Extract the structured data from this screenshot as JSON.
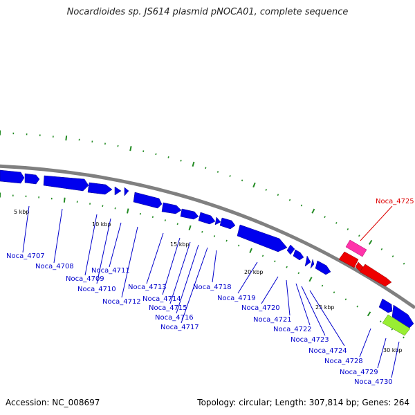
{
  "title": "Nocardioides sp. JS614 plasmid pNOCA01, complete sequence",
  "footer": {
    "accession": "Accession: NC_008697",
    "stats": "Topology: circular; Length: 307,814 bp; Genes: 264"
  },
  "colors": {
    "forward_gene": "#0000ee",
    "reverse_gene": "#ee0000",
    "pink_feature": "#ff33aa",
    "green_feature": "#99ee33",
    "backbone": "#808080",
    "ticks": "#228b22",
    "label_blue": "#0000cc",
    "label_red": "#dd0000"
  },
  "scale_labels": [
    "5 kbp",
    "10 kbp",
    "15 kbp",
    "20 kbp",
    "25 kbp",
    "30 kbp"
  ],
  "gene_labels": [
    {
      "name": "Noca_4707",
      "color": "blue"
    },
    {
      "name": "Noca_4708",
      "color": "blue"
    },
    {
      "name": "Noca_4709",
      "color": "blue"
    },
    {
      "name": "Noca_4710",
      "color": "blue"
    },
    {
      "name": "Noca_4711",
      "color": "blue"
    },
    {
      "name": "Noca_4712",
      "color": "blue"
    },
    {
      "name": "Noca_4713",
      "color": "blue"
    },
    {
      "name": "Noca_4714",
      "color": "blue"
    },
    {
      "name": "Noca_4715",
      "color": "blue"
    },
    {
      "name": "Noca_4716",
      "color": "blue"
    },
    {
      "name": "Noca_4717",
      "color": "blue"
    },
    {
      "name": "Noca_4718",
      "color": "blue"
    },
    {
      "name": "Noca_4719",
      "color": "blue"
    },
    {
      "name": "Noca_4720",
      "color": "blue"
    },
    {
      "name": "Noca_4721",
      "color": "blue"
    },
    {
      "name": "Noca_4722",
      "color": "blue"
    },
    {
      "name": "Noca_4723",
      "color": "blue"
    },
    {
      "name": "Noca_4724",
      "color": "blue"
    },
    {
      "name": "Noca_4728",
      "color": "blue"
    },
    {
      "name": "Noca_4729",
      "color": "blue"
    },
    {
      "name": "Noca_4730",
      "color": "blue"
    },
    {
      "name": "Noca_4725",
      "color": "red"
    }
  ]
}
